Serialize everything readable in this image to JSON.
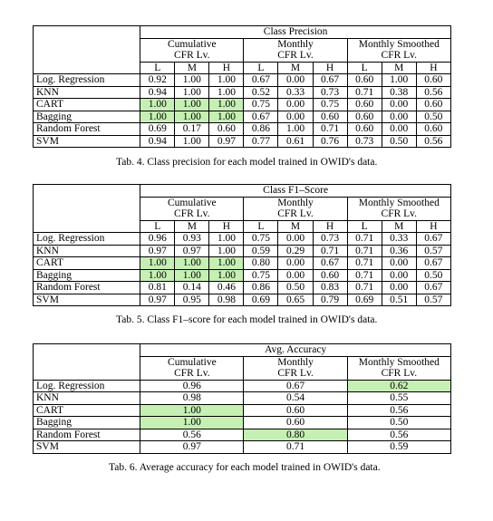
{
  "t4": {
    "title": "Class Precision",
    "groups": [
      [
        "Cumulative",
        "CFR Lv."
      ],
      [
        "Monthly",
        "CFR Lv."
      ],
      [
        "Monthly Smoothed",
        "CFR Lv."
      ]
    ],
    "cols": [
      "L",
      "M",
      "H",
      "L",
      "M",
      "H",
      "L",
      "M",
      "H"
    ],
    "rows": [
      {
        "model": "Log. Regression",
        "v": [
          "0.92",
          "1.00",
          "1.00",
          "0.67",
          "0.00",
          "0.67",
          "0.60",
          "1.00",
          "0.60"
        ]
      },
      {
        "model": "KNN",
        "v": [
          "0.94",
          "1.00",
          "1.00",
          "0.52",
          "0.33",
          "0.73",
          "0.71",
          "0.38",
          "0.56"
        ]
      },
      {
        "model": "CART",
        "v": [
          "1.00",
          "1.00",
          "1.00",
          "0.75",
          "0.00",
          "0.75",
          "0.60",
          "0.00",
          "0.60"
        ]
      },
      {
        "model": "Bagging",
        "v": [
          "1.00",
          "1.00",
          "1.00",
          "0.67",
          "0.00",
          "0.60",
          "0.60",
          "0.00",
          "0.50"
        ]
      },
      {
        "model": "Random Forest",
        "v": [
          "0.69",
          "0.17",
          "0.60",
          "0.86",
          "1.00",
          "0.71",
          "0.60",
          "0.00",
          "0.60"
        ]
      },
      {
        "model": "SVM",
        "v": [
          "0.94",
          "1.00",
          "0.97",
          "0.77",
          "0.61",
          "0.76",
          "0.73",
          "0.50",
          "0.56"
        ]
      }
    ],
    "caption": "Tab. 4. Class precision for each model trained in OWID's data."
  },
  "t5": {
    "title": "Class F1–Score",
    "groups": [
      [
        "Cumulative",
        "CFR Lv."
      ],
      [
        "Monthly",
        "CFR Lv."
      ],
      [
        "Monthly Smoothed",
        "CFR Lv."
      ]
    ],
    "cols": [
      "L",
      "M",
      "H",
      "L",
      "M",
      "H",
      "L",
      "M",
      "H"
    ],
    "rows": [
      {
        "model": "Log. Regression",
        "v": [
          "0.96",
          "0.93",
          "1.00",
          "0.75",
          "0.00",
          "0.73",
          "0.71",
          "0.33",
          "0.67"
        ]
      },
      {
        "model": "KNN",
        "v": [
          "0.97",
          "0.97",
          "1.00",
          "0.59",
          "0.29",
          "0.71",
          "0.71",
          "0.36",
          "0.57"
        ]
      },
      {
        "model": "CART",
        "v": [
          "1.00",
          "1.00",
          "1.00",
          "0.80",
          "0.00",
          "0.67",
          "0.71",
          "0.00",
          "0.67"
        ]
      },
      {
        "model": "Bagging",
        "v": [
          "1.00",
          "1.00",
          "1.00",
          "0.75",
          "0.00",
          "0.60",
          "0.71",
          "0.00",
          "0.50"
        ]
      },
      {
        "model": "Random Forest",
        "v": [
          "0.81",
          "0.14",
          "0.46",
          "0.86",
          "0.50",
          "0.83",
          "0.71",
          "0.00",
          "0.67"
        ]
      },
      {
        "model": "SVM",
        "v": [
          "0.97",
          "0.95",
          "0.98",
          "0.69",
          "0.65",
          "0.79",
          "0.69",
          "0.51",
          "0.57"
        ]
      }
    ],
    "caption": "Tab. 5. Class F1–score for each model trained in OWID's data."
  },
  "t6": {
    "title": "Avg. Accuracy",
    "groups": [
      [
        "Cumulative",
        "CFR Lv."
      ],
      [
        "Monthly",
        "CFR Lv."
      ],
      [
        "Monthly Smoothed",
        "CFR Lv."
      ]
    ],
    "rows": [
      {
        "model": "Log. Regression",
        "v": [
          "0.96",
          "0.67",
          "0.62"
        ]
      },
      {
        "model": "KNN",
        "v": [
          "0.98",
          "0.54",
          "0.55"
        ]
      },
      {
        "model": "CART",
        "v": [
          "1.00",
          "0.60",
          "0.56"
        ]
      },
      {
        "model": "Bagging",
        "v": [
          "1.00",
          "0.60",
          "0.50"
        ]
      },
      {
        "model": "Random Forest",
        "v": [
          "0.56",
          "0.80",
          "0.56"
        ]
      },
      {
        "model": "SVM",
        "v": [
          "0.97",
          "0.71",
          "0.59"
        ]
      }
    ],
    "caption": "Tab. 6. Average accuracy for each model trained in OWID's data."
  },
  "highlight_color": "#c6efb4"
}
